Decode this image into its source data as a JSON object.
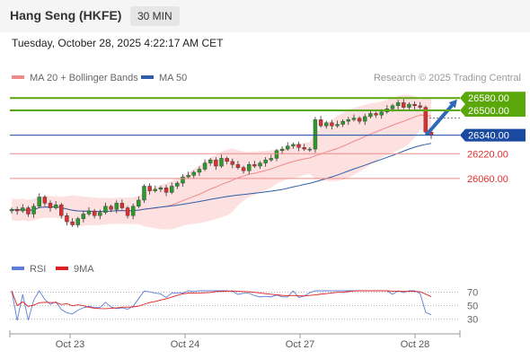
{
  "header": {
    "title": "Hang Seng (HKFE)",
    "timeframe": "30 MIN"
  },
  "timestamp": "Tuesday, October 28, 2025 4:22:17 AM CET",
  "colors": {
    "resistance": "#5aa70a",
    "pivot": "#1a4aa0",
    "support": "#f08a8a",
    "ma20": "#f08a8a",
    "ma50": "#2f5fa8",
    "rsi": "#5b7fd6",
    "rsi_ma": "#e02020",
    "candle_up": "#2d9a2d",
    "candle_down": "#d93030",
    "arrow": "#2f6ab8"
  },
  "chart_data": [
    {
      "type": "candlestick",
      "legend": [
        {
          "label": "MA 20 + Bollinger Bands",
          "color": "#f08a8a"
        },
        {
          "label": "MA 50",
          "color": "#2f5fa8"
        }
      ],
      "credit": "Research © 2025 Trading Central",
      "x_ticks": [
        "Oct 23",
        "Oct 24",
        "Oct 27",
        "Oct 28"
      ],
      "levels": [
        {
          "value": 26580,
          "label": "26580.00",
          "kind": "resistance"
        },
        {
          "value": 26500,
          "label": "26500.00",
          "kind": "resistance"
        },
        {
          "value": 26340,
          "label": "26340.00",
          "kind": "pivot"
        },
        {
          "value": 26220,
          "label": "26220.00",
          "kind": "support"
        },
        {
          "value": 26060,
          "label": "26060.00",
          "kind": "support"
        }
      ],
      "ylim": [
        25560,
        26680
      ],
      "close": [
        25860,
        25850,
        25870,
        25830,
        25880,
        25940,
        25900,
        25870,
        25890,
        25820,
        25780,
        25760,
        25800,
        25830,
        25850,
        25820,
        25840,
        25880,
        25860,
        25900,
        25870,
        25820,
        25880,
        25920,
        26010,
        25980,
        25990,
        26000,
        25970,
        26010,
        26030,
        26070,
        26080,
        26100,
        26120,
        26160,
        26180,
        26140,
        26190,
        26170,
        26150,
        26130,
        26110,
        26150,
        26140,
        26160,
        26180,
        26190,
        26240,
        26250,
        26270,
        26280,
        26260,
        26250,
        26250,
        26440,
        26400,
        26420,
        26400,
        26410,
        26430,
        26440,
        26450,
        26430,
        26460,
        26480,
        26470,
        26490,
        26510,
        26530,
        26550,
        26520,
        26540,
        26530,
        26520,
        26360,
        26340
      ],
      "trend_arrow": {
        "from": 26350,
        "to": 26580,
        "direction": "up"
      }
    },
    {
      "type": "line",
      "legend": [
        {
          "label": "RSI",
          "color": "#5b7fd6"
        },
        {
          "label": "9MA",
          "color": "#e02020"
        }
      ],
      "levels": [
        70,
        50,
        30
      ],
      "level_labels": [
        "70",
        "50",
        "30"
      ],
      "ylim": [
        20,
        80
      ]
    }
  ]
}
